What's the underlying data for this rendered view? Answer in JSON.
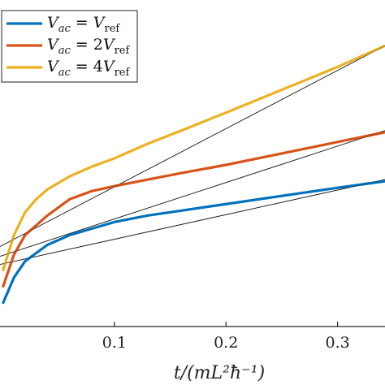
{
  "chart_data": {
    "type": "line",
    "xlabel": "t/(mL²ħ⁻¹)",
    "xlim": [
      -0.0025,
      0.3425
    ],
    "ylim": [
      0,
      1
    ],
    "x_ticks": [
      0.1,
      0.2,
      0.3
    ],
    "x_tick_labels": [
      "0.1",
      "0.2",
      "0.3"
    ],
    "grid": false,
    "legend_position": "top-left",
    "series": [
      {
        "name": "V_ac = V_ref",
        "legend": {
          "base": "V",
          "sub": "ac",
          "eq": " = ",
          "rhs_coef": "",
          "rhs_base": "V",
          "rhs_sub": "ref"
        },
        "color": "#0072BD",
        "x": [
          0.0,
          0.01,
          0.02,
          0.04,
          0.06,
          0.08,
          0.1,
          0.13,
          0.16,
          0.2,
          0.25,
          0.3,
          0.3425
        ],
        "y": [
          0.07,
          0.15,
          0.2,
          0.25,
          0.28,
          0.3,
          0.32,
          0.34,
          0.355,
          0.375,
          0.4,
          0.425,
          0.445
        ],
        "fit": {
          "x": [
            -0.0025,
            0.3425
          ],
          "y": [
            0.19,
            0.45
          ]
        }
      },
      {
        "name": "V_ac = 2V_ref",
        "legend": {
          "base": "V",
          "sub": "ac",
          "eq": " = ",
          "rhs_coef": "2",
          "rhs_base": "V",
          "rhs_sub": "ref"
        },
        "color": "#D95319",
        "x": [
          0.0,
          0.01,
          0.02,
          0.04,
          0.06,
          0.08,
          0.1,
          0.13,
          0.16,
          0.2,
          0.25,
          0.3,
          0.3425
        ],
        "y": [
          0.12,
          0.22,
          0.28,
          0.34,
          0.39,
          0.415,
          0.43,
          0.45,
          0.47,
          0.495,
          0.53,
          0.565,
          0.595
        ],
        "fit": {
          "x": [
            -0.0025,
            0.3425
          ],
          "y": [
            0.215,
            0.6
          ]
        }
      },
      {
        "name": "V_ac = 4V_ref",
        "legend": {
          "base": "V",
          "sub": "ac",
          "eq": " = ",
          "rhs_coef": "4",
          "rhs_base": "V",
          "rhs_sub": "ref"
        },
        "color": "#EDB120",
        "x": [
          0.0,
          0.01,
          0.02,
          0.03,
          0.04,
          0.06,
          0.08,
          0.1,
          0.13,
          0.16,
          0.2,
          0.25,
          0.3,
          0.3425
        ],
        "y": [
          0.17,
          0.28,
          0.35,
          0.39,
          0.42,
          0.46,
          0.49,
          0.515,
          0.56,
          0.6,
          0.655,
          0.725,
          0.795,
          0.86
        ],
        "fit": {
          "x": [
            -0.0025,
            0.3425
          ],
          "y": [
            0.245,
            0.86
          ]
        }
      }
    ]
  }
}
